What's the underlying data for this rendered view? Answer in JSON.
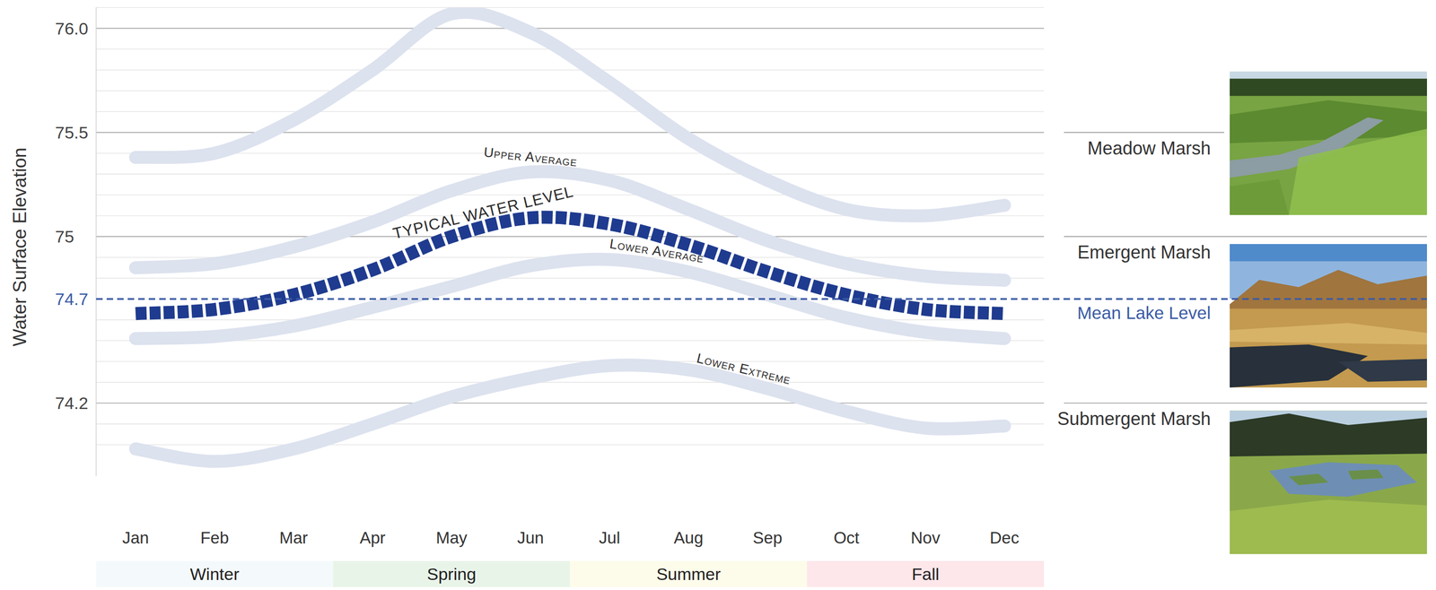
{
  "chart_data": {
    "type": "line",
    "y_label": "Water Surface Elevation",
    "categories": [
      "Jan",
      "Feb",
      "Mar",
      "Apr",
      "May",
      "Jun",
      "Jul",
      "Aug",
      "Sep",
      "Oct",
      "Nov",
      "Dec"
    ],
    "series": [
      {
        "color": "#dce2ee",
        "line_style": "solid",
        "values": [
          75.38,
          75.4,
          75.56,
          75.8,
          76.07,
          75.98,
          75.74,
          75.47,
          75.27,
          75.13,
          75.1,
          75.15
        ]
      },
      {
        "name": "Upper Average",
        "color": "#dce2ee",
        "line_style": "solid",
        "values": [
          74.85,
          74.87,
          74.95,
          75.07,
          75.22,
          75.31,
          75.27,
          75.13,
          74.98,
          74.87,
          74.81,
          74.79
        ]
      },
      {
        "name": "TYPICAL WATER LEVEL",
        "color": "#1f3b8f",
        "line_style": "dashed",
        "values": [
          74.63,
          74.65,
          74.72,
          74.84,
          75.0,
          75.09,
          75.06,
          74.96,
          74.83,
          74.72,
          74.65,
          74.63
        ]
      },
      {
        "name": "Lower Average",
        "color": "#dce2ee",
        "line_style": "solid",
        "values": [
          74.51,
          74.52,
          74.57,
          74.66,
          74.76,
          74.86,
          74.89,
          74.83,
          74.72,
          74.61,
          74.54,
          74.51
        ]
      },
      {
        "name": "Lower Extreme",
        "color": "#dce2ee",
        "line_style": "solid",
        "values": [
          73.98,
          73.92,
          73.98,
          74.1,
          74.23,
          74.32,
          74.38,
          74.36,
          74.27,
          74.16,
          74.08,
          74.09
        ]
      }
    ],
    "ylim": [
      73.85,
      76.1
    ],
    "yticks": [
      74.2,
      74.7,
      75,
      75.5,
      {
        "value": 76,
        "label": "76.0"
      }
    ],
    "minor_yticks": [
      74.0,
      74.1,
      74.3,
      74.4,
      74.5,
      74.6,
      74.8,
      74.9,
      75.1,
      75.2,
      75.3,
      75.4,
      75.6,
      75.7,
      75.8,
      75.9,
      76.1
    ],
    "grid": true,
    "mean_level": {
      "value": 74.7,
      "label": "Mean Lake Level",
      "color": "#3b5ba5"
    },
    "zones": [
      {
        "label": "Meadow Marsh",
        "value": 75.5
      },
      {
        "label": "Emergent Marsh",
        "value": 75
      },
      {
        "label": "Submergent Marsh",
        "value": 74.2
      }
    ],
    "seasons": [
      {
        "name": "Winter",
        "from": "Jan",
        "to": "Mar",
        "color": "#f4f9fb"
      },
      {
        "name": "Spring",
        "from": "Apr",
        "to": "Jun",
        "color": "#e9f4e9"
      },
      {
        "name": "Summer",
        "from": "Jul",
        "to": "Sep",
        "color": "#fdfcea"
      },
      {
        "name": "Fall",
        "from": "Oct",
        "to": "Dec",
        "color": "#fde7ea"
      }
    ]
  }
}
